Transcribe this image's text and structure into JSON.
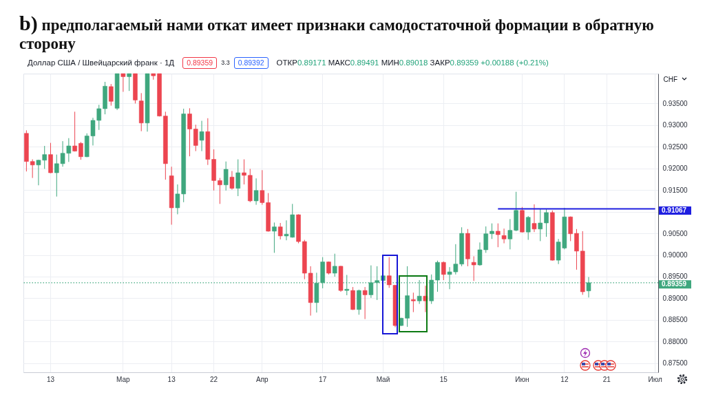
{
  "chart_data": {
    "type": "candlestick",
    "title": "b) предполагаемый нами откат имеет признаки самодостаточной формации в обратную сторону",
    "subtitle": "Доллар США / Швейцарский франк · 1Д",
    "ylabel": "CHF",
    "categories": [
      null,
      null,
      null,
      null,
      "13",
      null,
      null,
      null,
      null,
      null,
      null,
      null,
      null,
      null,
      null,
      null,
      "Мар",
      null,
      null,
      null,
      null,
      null,
      null,
      null,
      "13",
      null,
      null,
      null,
      null,
      null,
      null,
      "22",
      null,
      null,
      null,
      null,
      null,
      null,
      null,
      "Апр",
      null,
      null,
      null,
      null,
      null,
      null,
      null,
      null,
      null,
      "17",
      null,
      null,
      null,
      null,
      null,
      null,
      null,
      null,
      null,
      "Май",
      null,
      null,
      null,
      null,
      null,
      null,
      null,
      null,
      null,
      "15",
      null,
      null,
      null,
      null,
      null,
      null,
      null,
      null,
      null,
      null,
      null,
      null,
      "Июн",
      null,
      null,
      null,
      null,
      null,
      null,
      "12",
      null,
      null,
      null,
      null,
      null,
      null,
      "21",
      null,
      null,
      null,
      null,
      null,
      null,
      null,
      "Июл"
    ],
    "ohlc": [
      [
        0.9281,
        0.9288,
        0.9193,
        0.9216
      ],
      [
        0.9216,
        0.9221,
        0.9178,
        0.9208
      ],
      [
        0.9208,
        0.922,
        0.9161,
        0.9219
      ],
      [
        0.9219,
        0.9252,
        0.9199,
        0.9232
      ],
      [
        0.9232,
        0.9259,
        0.9189,
        0.919
      ],
      [
        0.919,
        0.9232,
        0.9135,
        0.9211
      ],
      [
        0.9211,
        0.9263,
        0.9204,
        0.9235
      ],
      [
        0.9235,
        0.927,
        0.9215,
        0.9252
      ],
      [
        0.9252,
        0.9331,
        0.9239,
        0.924
      ],
      [
        0.9258,
        0.9261,
        0.922,
        0.9227
      ],
      [
        0.9227,
        0.9281,
        0.9226,
        0.9275
      ],
      [
        0.9275,
        0.9317,
        0.9253,
        0.9311
      ],
      [
        0.9311,
        0.9347,
        0.9289,
        0.9338
      ],
      [
        0.9338,
        0.94,
        0.9325,
        0.939
      ],
      [
        0.9389,
        0.9395,
        0.9345,
        0.9355
      ],
      [
        0.9339,
        0.9419,
        0.9335,
        0.9419
      ],
      [
        0.9419,
        0.9419,
        0.9377,
        0.9412
      ],
      [
        0.9412,
        0.9419,
        0.9379,
        0.9419
      ],
      [
        0.9419,
        0.9419,
        0.935,
        0.9358
      ],
      [
        0.9356,
        0.9374,
        0.9286,
        0.9305
      ],
      [
        0.9305,
        0.9419,
        0.9285,
        0.9419
      ],
      [
        0.9419,
        0.9419,
        0.9405,
        0.9414
      ],
      [
        0.9419,
        0.9419,
        0.932,
        0.9321
      ],
      [
        0.9321,
        0.9331,
        0.9174,
        0.9211
      ],
      [
        0.9183,
        0.9204,
        0.907,
        0.9109
      ],
      [
        0.9109,
        0.9163,
        0.9094,
        0.9141
      ],
      [
        0.9141,
        0.9338,
        0.9122,
        0.9326
      ],
      [
        0.9326,
        0.9339,
        0.9228,
        0.9291
      ],
      [
        0.9291,
        0.9301,
        0.924,
        0.9253
      ],
      [
        0.9265,
        0.931,
        0.924,
        0.9285
      ],
      [
        0.9285,
        0.9316,
        0.9208,
        0.9221
      ],
      [
        0.9221,
        0.9244,
        0.9149,
        0.9172
      ],
      [
        0.9172,
        0.9178,
        0.9118,
        0.9162
      ],
      [
        0.9162,
        0.9216,
        0.9149,
        0.9198
      ],
      [
        0.918,
        0.9194,
        0.9151,
        0.9154
      ],
      [
        0.9154,
        0.9221,
        0.9136,
        0.919
      ],
      [
        0.919,
        0.9221,
        0.9163,
        0.9184
      ],
      [
        0.9184,
        0.9199,
        0.9122,
        0.9125
      ],
      [
        0.9125,
        0.9177,
        0.9116,
        0.9149
      ],
      [
        0.9149,
        0.9196,
        0.9116,
        0.9121
      ],
      [
        0.9121,
        0.9143,
        0.9054,
        0.9055
      ],
      [
        0.9055,
        0.9075,
        0.9005,
        0.9065
      ],
      [
        0.9065,
        0.9074,
        0.9036,
        0.9044
      ],
      [
        0.9044,
        0.908,
        0.9034,
        0.9048
      ],
      [
        0.9041,
        0.9118,
        0.904,
        0.9093
      ],
      [
        0.9093,
        0.9094,
        0.9027,
        0.9031
      ],
      [
        0.9031,
        0.9035,
        0.8944,
        0.8958
      ],
      [
        0.8958,
        0.8974,
        0.886,
        0.889
      ],
      [
        0.889,
        0.8959,
        0.8867,
        0.8935
      ],
      [
        0.8936,
        0.8995,
        0.8923,
        0.8984
      ],
      [
        0.8984,
        0.8985,
        0.8955,
        0.8958
      ],
      [
        0.8958,
        0.9003,
        0.895,
        0.8974
      ],
      [
        0.8974,
        0.8975,
        0.8915,
        0.8918
      ],
      [
        0.8918,
        0.8954,
        0.8907,
        0.8921
      ],
      [
        0.8918,
        0.8926,
        0.8873,
        0.8874
      ],
      [
        0.8874,
        0.892,
        0.8862,
        0.8918
      ],
      [
        0.8918,
        0.8926,
        0.8852,
        0.8908
      ],
      [
        0.8908,
        0.8976,
        0.8901,
        0.8936
      ],
      [
        0.8936,
        0.8974,
        0.8896,
        0.8941
      ],
      [
        0.8941,
        0.8958,
        0.894,
        0.8952
      ],
      [
        0.8952,
        0.8995,
        0.8924,
        0.8931
      ],
      [
        0.893,
        0.8931,
        0.8833,
        0.8837
      ],
      [
        0.8837,
        0.8855,
        0.8836,
        0.8854
      ],
      [
        0.8854,
        0.8974,
        0.8834,
        0.8906
      ],
      [
        0.8897,
        0.8913,
        0.8868,
        0.8894
      ],
      [
        0.8894,
        0.8942,
        0.8887,
        0.8905
      ],
      [
        0.8905,
        0.8929,
        0.8868,
        0.8894
      ],
      [
        0.8894,
        0.8955,
        0.8887,
        0.8942
      ],
      [
        0.8942,
        0.8987,
        0.8915,
        0.8983
      ],
      [
        0.8983,
        0.8985,
        0.8942,
        0.8955
      ],
      [
        0.8955,
        0.8972,
        0.8921,
        0.8961
      ],
      [
        0.8961,
        0.9025,
        0.8955,
        0.8979
      ],
      [
        0.8979,
        0.9064,
        0.8974,
        0.905
      ],
      [
        0.905,
        0.906,
        0.8974,
        0.8991
      ],
      [
        0.8983,
        0.8997,
        0.894,
        0.8977
      ],
      [
        0.8977,
        0.9029,
        0.8975,
        0.9012
      ],
      [
        0.9012,
        0.9066,
        0.9005,
        0.9049
      ],
      [
        0.9049,
        0.9073,
        0.9037,
        0.9055
      ],
      [
        0.9055,
        0.9073,
        0.9018,
        0.9047
      ],
      [
        0.9045,
        0.9061,
        0.9027,
        0.9037
      ],
      [
        0.9037,
        0.9083,
        0.9013,
        0.9057
      ],
      [
        0.9057,
        0.9146,
        0.9055,
        0.9103
      ],
      [
        0.9103,
        0.9111,
        0.9052,
        0.9053
      ],
      [
        0.9053,
        0.909,
        0.9035,
        0.9087
      ],
      [
        0.9073,
        0.9117,
        0.9053,
        0.906
      ],
      [
        0.906,
        0.9106,
        0.9032,
        0.9074
      ],
      [
        0.9074,
        0.9106,
        0.9042,
        0.9098
      ],
      [
        0.9098,
        0.9103,
        0.8987,
        0.8988
      ],
      [
        0.8988,
        0.9037,
        0.8979,
        0.903
      ],
      [
        0.9016,
        0.9109,
        0.9013,
        0.9088
      ],
      [
        0.9088,
        0.9089,
        0.9032,
        0.9049
      ],
      [
        0.905,
        0.906,
        0.8966,
        0.9009
      ],
      [
        0.9009,
        0.9055,
        0.8908,
        0.8915
      ],
      [
        0.89171,
        0.89491,
        0.89018,
        0.89359
      ],
      null,
      null,
      null,
      null,
      null,
      null,
      null,
      null,
      null,
      null,
      null
    ],
    "colors": [
      "#ec4550",
      "#ec4550",
      "#3fa77e",
      "#3fa77e",
      "#ec4550",
      "#3fa77e",
      "#3fa77e",
      "#3fa77e",
      "#ec4550",
      "#ec4550",
      "#3fa77e",
      "#3fa77e",
      "#3fa77e",
      "#3fa77e",
      "#ec4550",
      "#3fa77e",
      "#ec4550",
      "#3fa77e",
      "#ec4550",
      "#ec4550",
      "#3fa77e",
      "#ec4550",
      "#ec4550",
      "#ec4550",
      "#ec4550",
      "#3fa77e",
      "#3fa77e",
      "#ec4550",
      "#ec4550",
      "#3fa77e",
      "#ec4550",
      "#ec4550",
      "#ec4550",
      "#3fa77e",
      "#ec4550",
      "#3fa77e",
      "#ec4550",
      "#ec4550",
      "#3fa77e",
      "#ec4550",
      "#ec4550",
      "#3fa77e",
      "#ec4550",
      "#3fa77e",
      "#3fa77e",
      "#ec4550",
      "#ec4550",
      "#ec4550",
      "#3fa77e",
      "#3fa77e",
      "#ec4550",
      "#3fa77e",
      "#ec4550",
      "#3fa77e",
      "#ec4550",
      "#3fa77e",
      "#ec4550",
      "#3fa77e",
      "#3fa77e",
      "#3fa77e",
      "#ec4550",
      "#ec4550",
      "#3fa77e",
      "#3fa77e",
      "#ec4550",
      "#3fa77e",
      "#ec4550",
      "#3fa77e",
      "#3fa77e",
      "#ec4550",
      "#3fa77e",
      "#3fa77e",
      "#3fa77e",
      "#ec4550",
      "#ec4550",
      "#3fa77e",
      "#3fa77e",
      "#3fa77e",
      "#ec4550",
      "#ec4550",
      "#3fa77e",
      "#3fa77e",
      "#ec4550",
      "#3fa77e",
      "#ec4550",
      "#3fa77e",
      "#3fa77e",
      "#ec4550",
      "#3fa77e",
      "#3fa77e",
      "#ec4550",
      "#ec4550",
      "#ec4550",
      "#3fa77e",
      null,
      null,
      null,
      null,
      null,
      null,
      null,
      null,
      null,
      null,
      null
    ],
    "series": [
      {
        "type": "line",
        "color": "#1e1ee0",
        "values": [
          null,
          null,
          null,
          null,
          null,
          null,
          null,
          null,
          null,
          null,
          null,
          null,
          null,
          null,
          null,
          null,
          null,
          null,
          null,
          null,
          null,
          null,
          null,
          null,
          null,
          null,
          null,
          null,
          null,
          null,
          null,
          null,
          null,
          null,
          null,
          null,
          null,
          null,
          null,
          null,
          null,
          null,
          null,
          null,
          null,
          null,
          null,
          null,
          null,
          null,
          null,
          null,
          null,
          null,
          null,
          null,
          null,
          null,
          null,
          null,
          null,
          null,
          null,
          null,
          null,
          null,
          null,
          null,
          null,
          null,
          null,
          null,
          null,
          null,
          null,
          null,
          null,
          null,
          0.91067,
          0.91067,
          0.91067,
          0.91067,
          0.91067,
          0.91067,
          0.91067,
          0.91067,
          0.91067,
          0.91067,
          0.91067,
          0.91067,
          0.91067,
          0.91067,
          0.91067,
          0.91067,
          0.91067,
          0.91067,
          0.91067,
          0.91067,
          0.91067,
          0.91067,
          0.91067,
          0.91067,
          0.91067,
          0.91067,
          0.91067
        ],
        "value_labels": [
          null,
          null,
          null,
          null,
          null,
          null,
          null,
          null,
          null,
          null,
          null,
          null,
          null,
          null,
          null,
          null,
          null,
          null,
          null,
          null,
          null,
          null,
          null,
          null,
          null,
          null,
          null,
          null,
          null,
          null,
          null,
          null,
          null,
          null,
          null,
          null,
          null,
          null,
          null,
          null,
          null,
          null,
          null,
          null,
          null,
          null,
          null,
          null,
          null,
          null,
          null,
          null,
          null,
          null,
          null,
          null,
          null,
          null,
          null,
          null,
          null,
          null,
          null,
          null,
          null,
          null,
          null,
          null,
          null,
          null,
          null,
          null,
          null,
          null,
          null,
          null,
          null,
          null,
          null,
          null,
          null,
          null,
          null,
          null,
          null,
          null,
          null,
          null,
          null,
          null,
          null,
          null,
          null,
          null,
          null,
          null,
          null,
          null,
          null,
          null,
          null,
          null,
          null,
          null,
          "0.91067"
        ]
      }
    ],
    "ref_lines": [
      {
        "axis": "y",
        "value": 0.89359,
        "label": "0.89359",
        "color": "#3fa77e",
        "line_style": "dotted"
      }
    ],
    "annotations": [
      "ОТКР0.89171 МАКС0.89491 МИН0.89018 ЗАКР0.89359 +0.00188 (+0.21%)",
      "0.89359",
      "3.3",
      "0.89392"
    ],
    "ylim": [
      0.8729,
      0.9419
    ],
    "yticks": [
      {
        "value": 0.875,
        "label": "0.87500"
      },
      {
        "value": 0.88,
        "label": "0.88000"
      },
      {
        "value": 0.885,
        "label": "0.88500"
      },
      {
        "value": 0.89,
        "label": "0.89000"
      },
      {
        "value": 0.895,
        "label": "0.89500"
      },
      {
        "value": 0.9,
        "label": "0.90000"
      },
      {
        "value": 0.905,
        "label": "0.90500"
      },
      {
        "value": 0.91,
        "label": null
      },
      {
        "value": 0.915,
        "label": "0.91500"
      },
      {
        "value": 0.92,
        "label": "0.92000"
      },
      {
        "value": 0.925,
        "label": "0.92500"
      },
      {
        "value": 0.93,
        "label": "0.93000"
      },
      {
        "value": 0.935,
        "label": "0.93500"
      }
    ],
    "grid": true
  }
}
